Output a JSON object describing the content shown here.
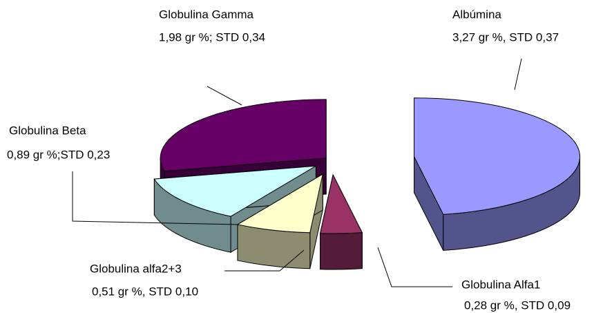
{
  "chart_data": {
    "type": "pie",
    "three_d": true,
    "exploded": true,
    "categories": [
      "Albúmina",
      "Globulina Alfa1",
      "Globulina alfa2+3",
      "Globulina Beta",
      "Globulina Gamma"
    ],
    "values": [
      3.27,
      0.28,
      0.51,
      0.89,
      1.98
    ],
    "value_labels": [
      "3,27 gr %, STD 0,37",
      "0,28 gr %, STD 0,09",
      "0,51 gr %, STD 0,10",
      "0,89 gr %;STD 0,23",
      "1,98 gr %; STD 0,34"
    ],
    "colors": [
      "#9999ff",
      "#993366",
      "#ffffcc",
      "#ccffff",
      "#660066"
    ]
  }
}
